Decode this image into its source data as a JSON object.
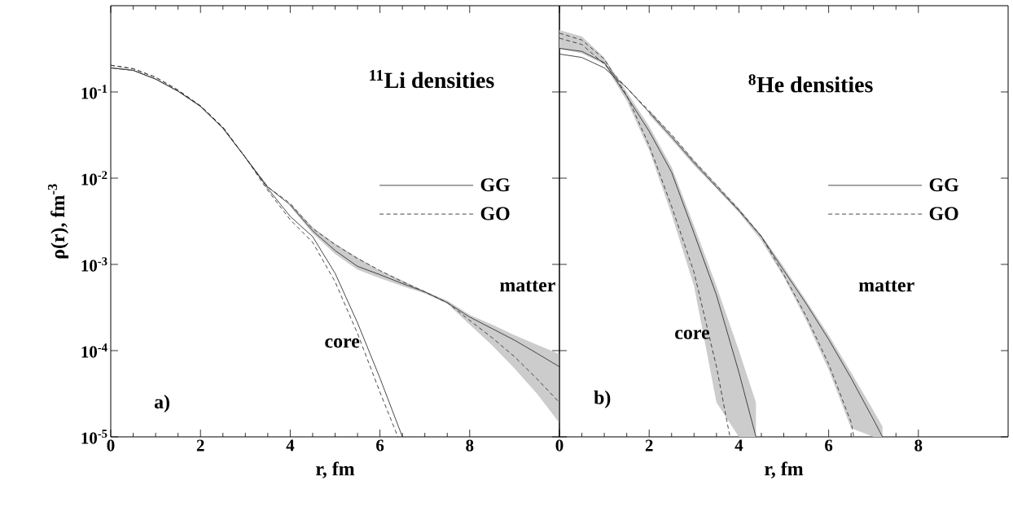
{
  "chart_data": [
    {
      "type": "line",
      "title": "$^{11}$Li  densities",
      "xlabel": "r,  fm",
      "ylabel": "ρ(r),  fm$^{-3}$",
      "log": "y",
      "legend": "right",
      "xlim": [
        0,
        10
      ],
      "xticks": [
        0,
        2,
        4,
        6,
        8
      ],
      "ylim": [
        1e-05,
        1
      ],
      "yticks": [
        {
          "value": 0.1,
          "label": "10$^{-1}$"
        },
        {
          "value": 0.01,
          "label": "10$^{-2}$"
        },
        {
          "value": 0.001,
          "label": "10$^{-3}$"
        },
        {
          "value": 0.0001,
          "label": "10$^{-4}$"
        },
        {
          "value": 1e-05,
          "label": "10$^{-5}$"
        }
      ],
      "annotations": [
        "a)",
        "core",
        "matter"
      ],
      "series": [
        {
          "name": "GG",
          "color": "#333333",
          "line_style": "solid",
          "x": [
            0,
            0.5,
            1,
            1.5,
            2,
            2.5,
            3,
            3.5,
            4,
            4.5,
            5,
            5.5,
            6,
            6.5,
            7,
            7.5,
            8,
            8.5,
            9,
            9.5,
            10
          ],
          "values": [
            0.19,
            0.178,
            0.141,
            0.102,
            0.068,
            0.038,
            0.0174,
            0.0079,
            0.0049,
            0.00245,
            0.00145,
            0.00095,
            0.00076,
            0.0006,
            0.00048,
            0.00036,
            0.000245,
            0.00018,
            0.000132,
            9.3e-05,
            6.5e-05
          ],
          "upper": [
            null,
            null,
            null,
            null,
            null,
            null,
            null,
            null,
            0.0051,
            0.0027,
            0.00174,
            0.0012,
            0.00085,
            0.00065,
            0.00049,
            0.00038,
            0.00026,
            0.0002,
            0.000151,
            0.000117,
            9.1e-05
          ],
          "lower": [
            null,
            null,
            null,
            null,
            null,
            null,
            null,
            null,
            0.0047,
            0.0023,
            0.00132,
            0.00087,
            0.00069,
            0.00056,
            0.00046,
            0.00035,
            0.0002,
            0.000115,
            6.2e-05,
            3.16e-05,
            1.45e-05
          ]
        },
        {
          "name": "GO",
          "color": "#333333",
          "line_style": "dashed",
          "x": [
            0,
            0.5,
            1,
            1.5,
            2,
            2.5,
            3,
            3.5,
            4,
            4.5,
            5,
            5.5,
            6,
            6.5,
            7,
            7.5,
            8,
            8.5,
            9,
            9.5,
            10
          ],
          "values": [
            0.204,
            0.186,
            0.148,
            0.105,
            0.069,
            0.039,
            0.0174,
            0.0079,
            0.0051,
            0.0026,
            0.0017,
            0.00117,
            0.00085,
            0.00063,
            0.00048,
            0.00036,
            0.000224,
            0.000141,
            8.5e-05,
            4.7e-05,
            2.5e-05
          ]
        },
        {
          "color": "#333333",
          "line_style": "solid",
          "x": [
            0,
            0.5,
            1,
            1.5,
            2,
            2.5,
            3,
            3.5,
            4,
            4.5,
            5,
            5.5,
            6,
            6.5
          ],
          "values": [
            0.19,
            0.178,
            0.141,
            0.102,
            0.068,
            0.038,
            0.0174,
            0.0076,
            0.0036,
            0.0021,
            0.00079,
            0.00021,
            4.8e-05,
            1e-05
          ]
        },
        {
          "color": "#333333",
          "line_style": "dashed",
          "x": [
            0,
            0.5,
            1,
            1.5,
            2,
            2.5,
            3,
            3.5,
            4,
            4.5,
            5,
            5.5,
            6,
            6.4
          ],
          "values": [
            0.204,
            0.186,
            0.148,
            0.105,
            0.069,
            0.039,
            0.0174,
            0.0072,
            0.0033,
            0.0018,
            0.00063,
            0.000158,
            3.3e-05,
            1e-05
          ]
        }
      ]
    },
    {
      "type": "line",
      "title": "$^{8}$He  densities",
      "xlabel": "r,  fm",
      "log": "y",
      "legend": "right",
      "tick_labels": "x",
      "xlim": [
        0,
        10
      ],
      "xticks": [
        0,
        2,
        4,
        6,
        8
      ],
      "ylim": [
        1e-05,
        1
      ],
      "yticks": [
        {
          "value": 0.1,
          "label": null
        },
        {
          "value": 0.01,
          "label": null
        },
        {
          "value": 0.001,
          "label": null
        },
        {
          "value": 0.0001,
          "label": null
        },
        {
          "value": 1e-05,
          "label": null
        }
      ],
      "annotations": [
        "b)",
        "core",
        "matter"
      ],
      "series": [
        {
          "name": "GG",
          "color": "#333333",
          "line_style": "solid",
          "x": [
            0,
            0.5,
            1,
            1.5,
            2,
            2.5,
            3,
            3.5,
            4,
            4.5,
            5,
            5.5,
            6,
            6.5,
            7,
            7.2
          ],
          "values": [
            0.275,
            0.251,
            0.19,
            0.112,
            0.058,
            0.03,
            0.0151,
            0.0079,
            0.0042,
            0.0021,
            0.00085,
            0.00035,
            0.000135,
            4.8e-05,
            1.58e-05,
            1e-05
          ],
          "upper": [
            null,
            null,
            null,
            null,
            0.062,
            0.032,
            0.0162,
            0.0085,
            0.0045,
            0.0022,
            0.00093,
            0.00038,
            0.000151,
            5.6e-05,
            2e-05,
            1.32e-05
          ],
          "lower": [
            null,
            null,
            null,
            null,
            0.054,
            0.028,
            0.0141,
            0.0076,
            0.004,
            0.0019,
            0.00071,
            0.000224,
            6e-05,
            1.26e-05,
            1e-05,
            1e-05
          ]
        },
        {
          "name": "GO",
          "color": "#333333",
          "line_style": "dashed",
          "x": [
            0,
            0.5,
            1,
            1.5,
            2,
            2.5,
            3,
            3.5,
            4,
            4.5,
            5,
            5.5,
            6,
            6.5,
            6.56
          ],
          "values": [
            0.42,
            0.355,
            0.21,
            0.112,
            0.06,
            0.032,
            0.0158,
            0.0083,
            0.0043,
            0.0021,
            0.00076,
            0.00025,
            7e-05,
            1.48e-05,
            1e-05
          ]
        },
        {
          "color": "#333333",
          "line_style": "solid",
          "x": [
            0,
            0.5,
            1,
            1.5,
            2,
            2.5,
            3,
            3.5,
            4,
            4.38
          ],
          "values": [
            0.32,
            0.295,
            0.219,
            0.089,
            0.035,
            0.0117,
            0.0023,
            0.00044,
            5.6e-05,
            1e-05
          ],
          "upper": [
            0.52,
            0.44,
            0.251,
            0.1,
            0.04,
            0.0135,
            0.0028,
            0.00056,
            0.0001,
            2.5e-05
          ],
          "lower": [
            0.316,
            0.28,
            0.209,
            0.079,
            0.021,
            0.0038,
            0.00056,
            2.5e-05,
            1e-05,
            1e-05
          ]
        },
        {
          "color": "#333333",
          "line_style": "dashed",
          "x": [
            0,
            0.5,
            1,
            1.5,
            2,
            2.5,
            3,
            3.5,
            3.8
          ],
          "values": [
            0.48,
            0.4,
            0.24,
            0.091,
            0.024,
            0.0047,
            0.00081,
            6.5e-05,
            1e-05
          ]
        }
      ]
    }
  ]
}
